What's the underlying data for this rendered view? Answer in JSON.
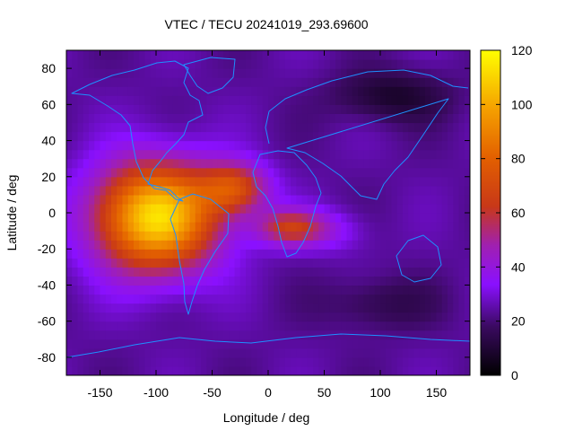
{
  "chart_data": {
    "type": "heatmap",
    "title": "VTEC / TECU 20241019_293.69600",
    "xlabel": "Longitude / deg",
    "ylabel": "Latitude / deg",
    "xlim": [
      -180,
      180
    ],
    "ylim": [
      -90,
      90
    ],
    "x_ticks": [
      -150,
      -100,
      -50,
      0,
      50,
      100,
      150
    ],
    "y_ticks": [
      -80,
      -60,
      -40,
      -20,
      0,
      20,
      40,
      60,
      80
    ],
    "colorbar": {
      "range": [
        0,
        120
      ],
      "ticks": [
        0,
        20,
        40,
        60,
        80,
        100,
        120
      ],
      "colormap": "gnuplot black-purple-red-orange-yellow"
    },
    "overlay": "coastlines",
    "grid": false,
    "field_features": [
      {
        "feature": "main equatorial peak",
        "lon": -100,
        "lat": 0,
        "value": 115
      },
      {
        "feature": "Atlantic extension",
        "lon": -25,
        "lat": 15,
        "value": 75
      },
      {
        "feature": "African band",
        "lon": 20,
        "lat": -8,
        "value": 70
      },
      {
        "feature": "Asian night-side minimum",
        "lon": 110,
        "lat": 65,
        "value": 8
      },
      {
        "feature": "southern minimum",
        "lon": 100,
        "lat": -50,
        "value": 15
      }
    ]
  },
  "colors": {
    "coastline": "#1e90ff",
    "axes": "#000000",
    "background": "#ffffff"
  }
}
